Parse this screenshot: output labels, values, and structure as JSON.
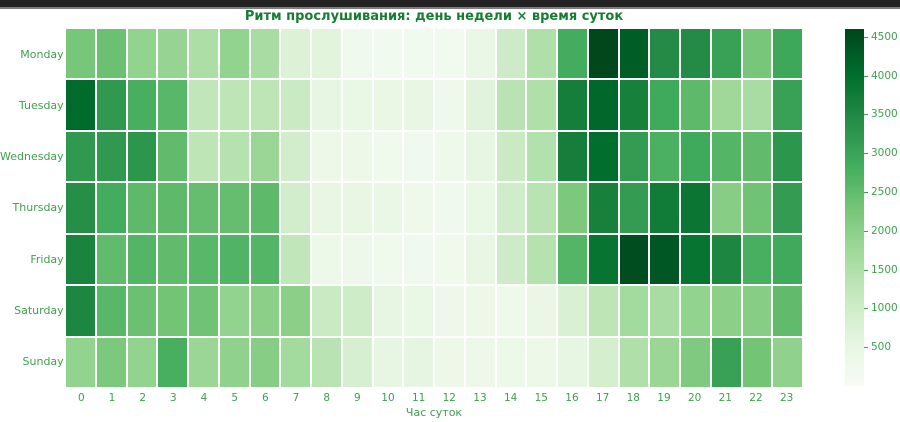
{
  "window": {
    "top_bar_color": "#232323",
    "top_bar_border_color": "#7e7e7e"
  },
  "chart_data": {
    "type": "heatmap",
    "title": "Ритм прослушивания: день недели × время суток",
    "xlabel": "Час суток",
    "ylabel": "",
    "rows": [
      "Monday",
      "Tuesday",
      "Wednesday",
      "Thursday",
      "Friday",
      "Saturday",
      "Sunday"
    ],
    "columns": [
      "0",
      "1",
      "2",
      "3",
      "4",
      "5",
      "6",
      "7",
      "8",
      "9",
      "10",
      "11",
      "12",
      "13",
      "14",
      "15",
      "16",
      "17",
      "18",
      "19",
      "20",
      "21",
      "22",
      "23"
    ],
    "values": [
      [
        2250,
        2400,
        1900,
        1850,
        1550,
        1900,
        1600,
        750,
        620,
        220,
        200,
        180,
        200,
        400,
        1050,
        1500,
        2850,
        4550,
        4250,
        3450,
        3450,
        3050,
        2250,
        2950
      ],
      [
        4050,
        3200,
        2800,
        2600,
        1250,
        1300,
        1300,
        1100,
        500,
        450,
        430,
        480,
        280,
        650,
        1350,
        1500,
        3700,
        4100,
        3650,
        2900,
        2550,
        1750,
        1600,
        3050
      ],
      [
        3200,
        3200,
        3250,
        2500,
        1300,
        1400,
        1800,
        950,
        330,
        320,
        250,
        230,
        270,
        500,
        1100,
        1450,
        3700,
        4000,
        3150,
        2750,
        2900,
        2650,
        2500,
        3250
      ],
      [
        3400,
        2850,
        2550,
        2550,
        2450,
        2450,
        2550,
        950,
        460,
        460,
        400,
        270,
        230,
        440,
        980,
        1350,
        2200,
        3650,
        3150,
        3750,
        3850,
        2050,
        2350,
        3150
      ],
      [
        3600,
        2500,
        2650,
        2500,
        2600,
        2700,
        2650,
        1250,
        350,
        310,
        250,
        210,
        250,
        460,
        1050,
        1400,
        2650,
        3900,
        4480,
        4330,
        3900,
        3550,
        2800,
        2900
      ],
      [
        3550,
        2600,
        2400,
        2300,
        2350,
        1900,
        2000,
        2000,
        1100,
        1000,
        500,
        450,
        310,
        330,
        280,
        420,
        800,
        1300,
        1700,
        1600,
        1900,
        2000,
        2050,
        2500
      ],
      [
        1900,
        2200,
        1900,
        2800,
        1800,
        1950,
        2050,
        1700,
        1350,
        850,
        520,
        560,
        320,
        310,
        350,
        330,
        530,
        900,
        1500,
        1800,
        2150,
        3050,
        2300,
        1950
      ]
    ],
    "scale": {
      "vmin": 0,
      "vmax": 4600
    },
    "colorbar_ticks": [
      500,
      1000,
      1500,
      2000,
      2500,
      3000,
      3500,
      4000,
      4500
    ],
    "legend_position": "right",
    "grid": false,
    "colormap": {
      "name": "Greens",
      "stops": [
        [
          0.0,
          "#f7fcf5"
        ],
        [
          0.125,
          "#e5f5e0"
        ],
        [
          0.25,
          "#c7e9c0"
        ],
        [
          0.375,
          "#a1d99b"
        ],
        [
          0.5,
          "#74c476"
        ],
        [
          0.625,
          "#41ab5d"
        ],
        [
          0.75,
          "#238b45"
        ],
        [
          0.875,
          "#006d2c"
        ],
        [
          1.0,
          "#00441b"
        ]
      ]
    },
    "colors": {
      "title": "#177c33",
      "tick_labels": "#3fa04e",
      "background": "#ffffff",
      "cell_divider": "#ffffff"
    }
  }
}
